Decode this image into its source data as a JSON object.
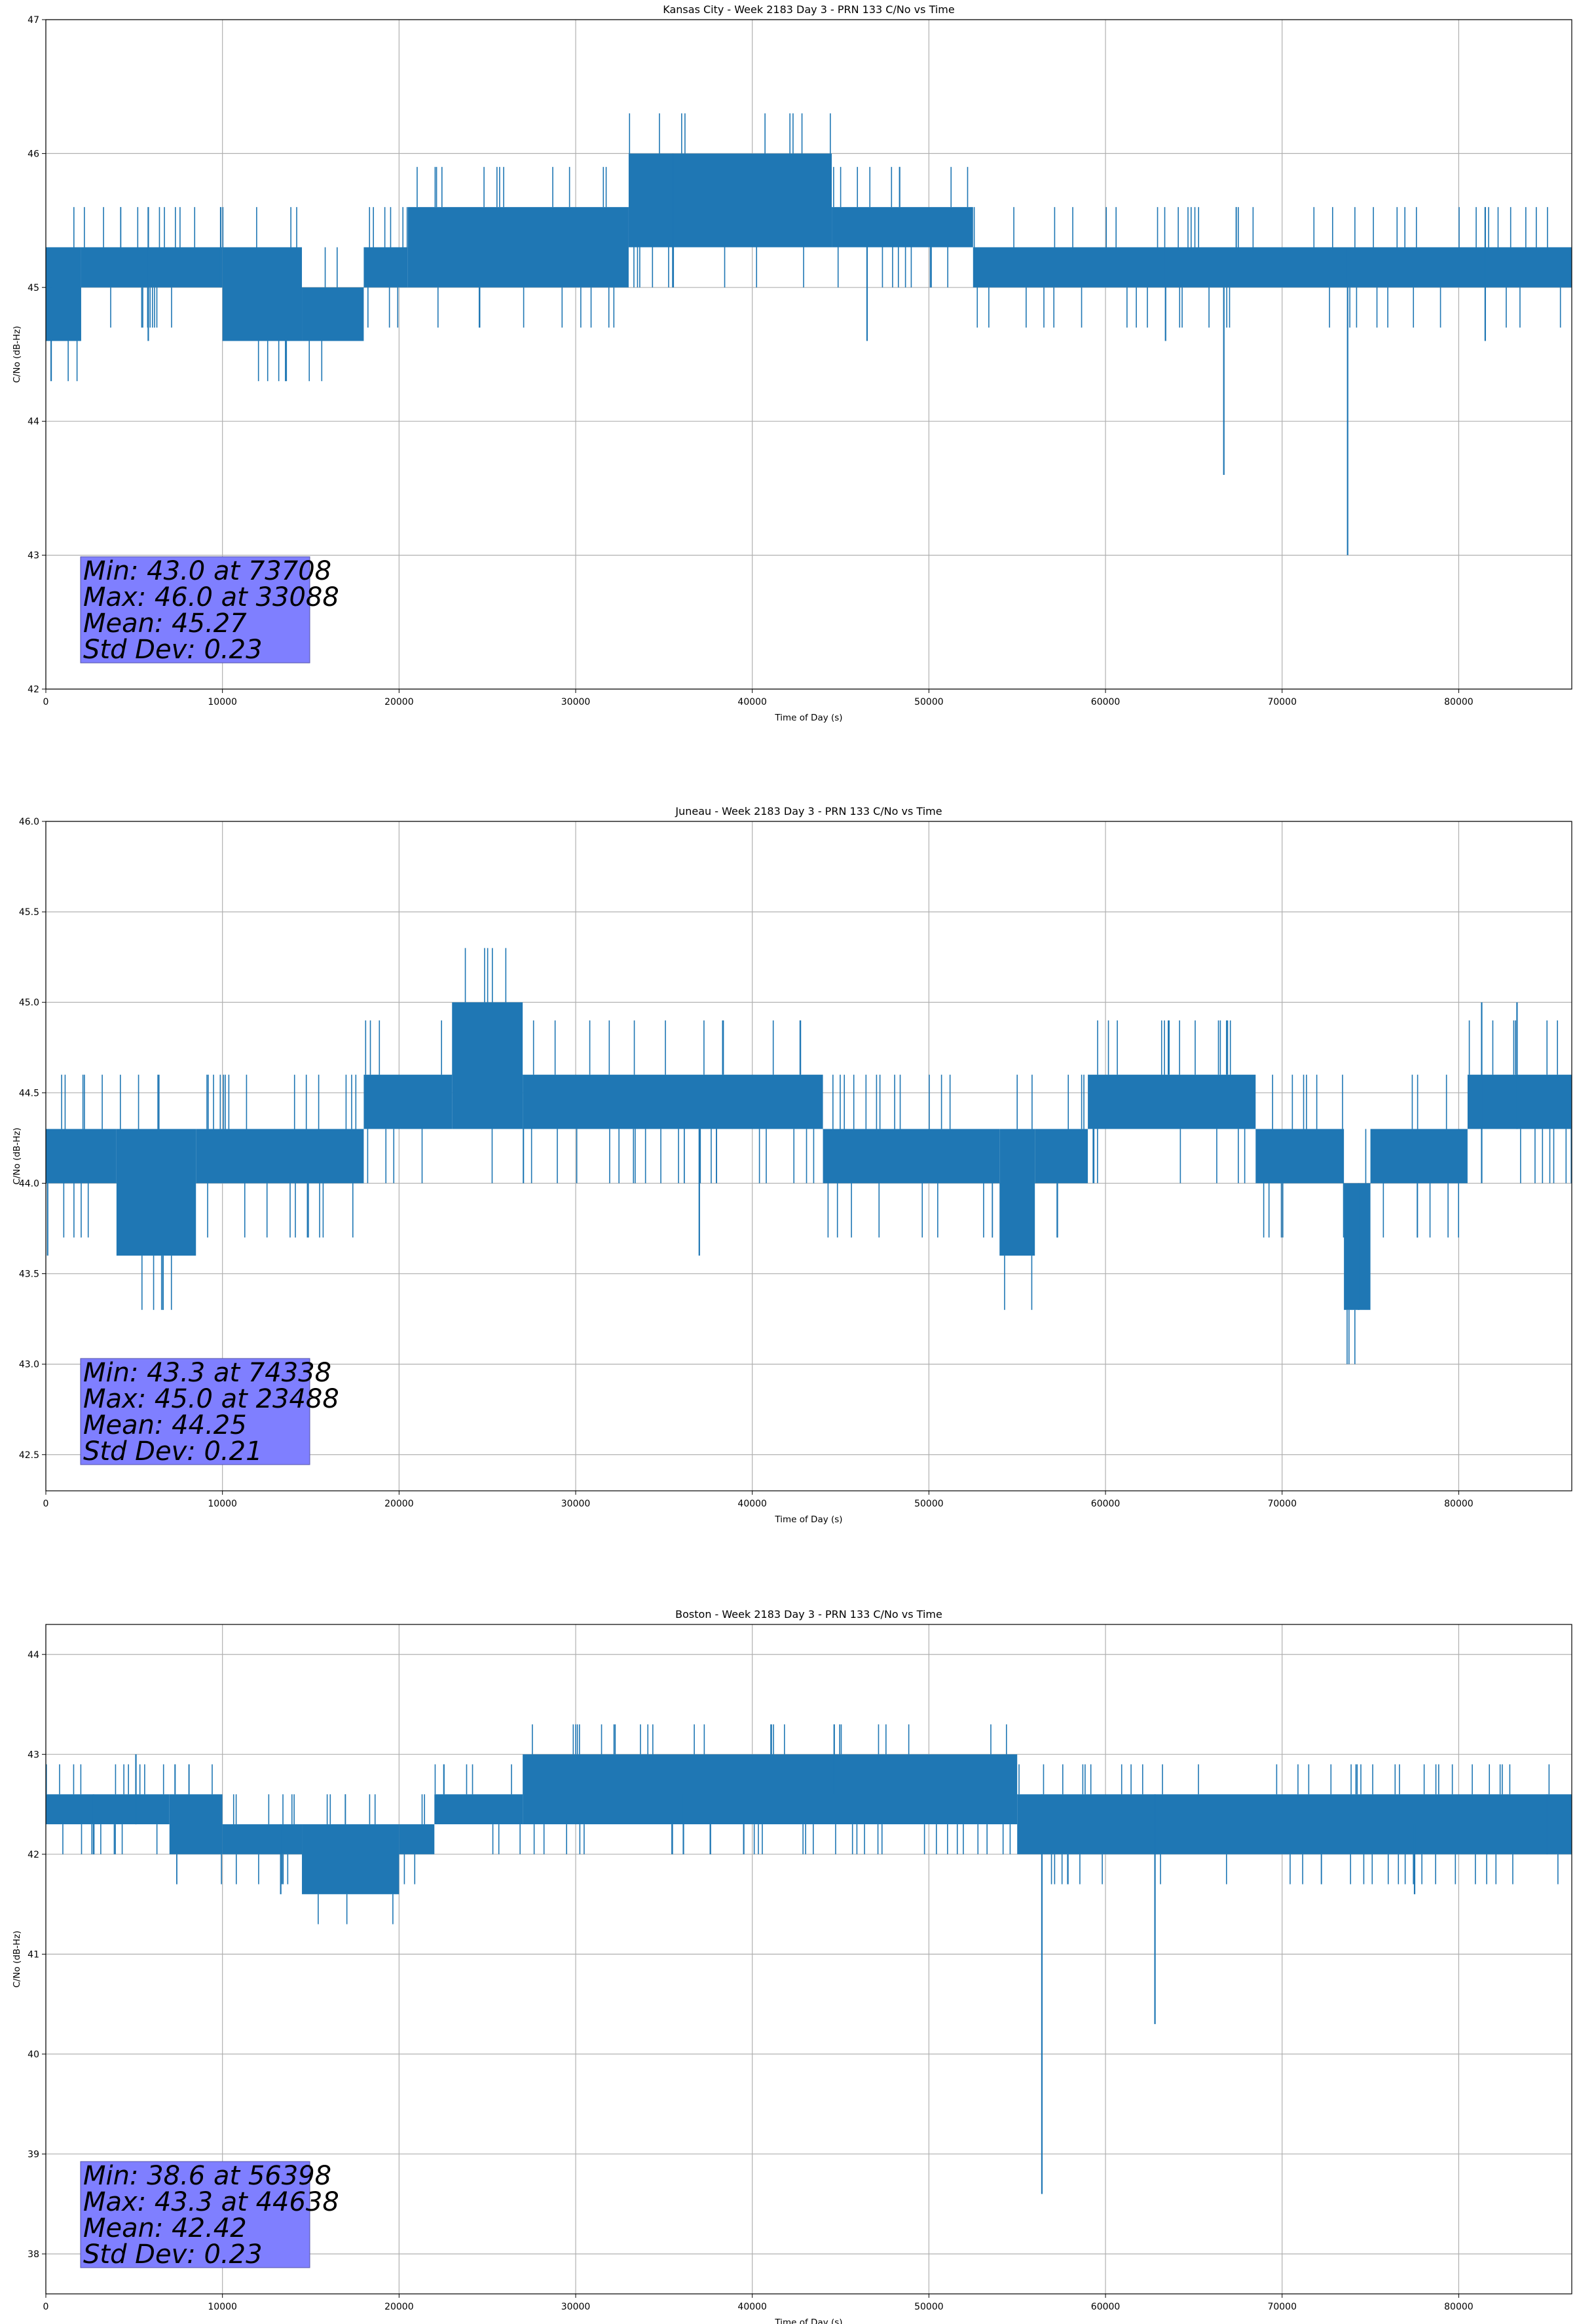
{
  "chart_data": [
    {
      "type": "line",
      "title": "Kansas City - Week 2183 Day 3 - PRN 133 C/No vs Time",
      "xlabel": "Time of Day (s)",
      "ylabel": "C/No (dB-Hz)",
      "xlim": [
        0,
        86400
      ],
      "ylim": [
        42,
        47
      ],
      "x_ticks": [
        0,
        10000,
        20000,
        30000,
        40000,
        50000,
        60000,
        70000,
        80000
      ],
      "y_ticks": [
        42,
        43,
        44,
        45,
        46,
        47
      ],
      "y_tick_labels": [
        "42",
        "43",
        "44",
        "45",
        "46",
        "47"
      ],
      "grid": true,
      "color": "#1f77b4",
      "segments": [
        {
          "x0": 0,
          "x1": 2000,
          "lo": 44.6,
          "hi": 45.3
        },
        {
          "x0": 2000,
          "x1": 10000,
          "lo": 45.0,
          "hi": 45.3
        },
        {
          "x0": 10000,
          "x1": 14500,
          "lo": 44.6,
          "hi": 45.3
        },
        {
          "x0": 14500,
          "x1": 18000,
          "lo": 44.6,
          "hi": 45.0
        },
        {
          "x0": 18000,
          "x1": 20500,
          "lo": 45.0,
          "hi": 45.3
        },
        {
          "x0": 20500,
          "x1": 33000,
          "lo": 45.0,
          "hi": 45.6
        },
        {
          "x0": 33000,
          "x1": 44500,
          "lo": 45.3,
          "hi": 46.0
        },
        {
          "x0": 44500,
          "x1": 52500,
          "lo": 45.3,
          "hi": 45.6
        },
        {
          "x0": 52500,
          "x1": 86400,
          "lo": 45.0,
          "hi": 45.3
        }
      ],
      "spikes": [
        {
          "x": 300,
          "lo": 44.3,
          "hi": 45.0
        },
        {
          "x": 5800,
          "lo": 44.6,
          "hi": 45.6
        },
        {
          "x": 9900,
          "lo": 45.0,
          "hi": 45.6
        },
        {
          "x": 35500,
          "lo": 45.0,
          "hi": 46.0
        },
        {
          "x": 46500,
          "lo": 44.6,
          "hi": 45.3
        },
        {
          "x": 63400,
          "lo": 44.6,
          "hi": 45.3
        },
        {
          "x": 66700,
          "lo": 43.6,
          "hi": 45.0
        },
        {
          "x": 73708,
          "lo": 43.0,
          "hi": 45.3
        },
        {
          "x": 81500,
          "lo": 44.6,
          "hi": 45.6
        }
      ],
      "stats": [
        "Min: 43.0 at 73708",
        "Max: 46.0 at 33088",
        "Mean: 45.27",
        "Std Dev: 0.23"
      ]
    },
    {
      "type": "line",
      "title": "Juneau - Week 2183 Day 3 - PRN 133 C/No vs Time",
      "xlabel": "Time of Day (s)",
      "ylabel": "C/No (dB-Hz)",
      "xlim": [
        0,
        86400
      ],
      "ylim": [
        42.3,
        46
      ],
      "x_ticks": [
        0,
        10000,
        20000,
        30000,
        40000,
        50000,
        60000,
        70000,
        80000
      ],
      "y_ticks": [
        42.5,
        43.0,
        43.5,
        44.0,
        44.5,
        45.0,
        45.5,
        46.0
      ],
      "y_tick_labels": [
        "42.5",
        "43.0",
        "43.5",
        "44.0",
        "44.5",
        "45.0",
        "45.5",
        "46.0"
      ],
      "grid": true,
      "color": "#1f77b4",
      "segments": [
        {
          "x0": 0,
          "x1": 4000,
          "lo": 44.0,
          "hi": 44.3
        },
        {
          "x0": 4000,
          "x1": 8500,
          "lo": 43.6,
          "hi": 44.3
        },
        {
          "x0": 8500,
          "x1": 18000,
          "lo": 44.0,
          "hi": 44.3
        },
        {
          "x0": 18000,
          "x1": 23000,
          "lo": 44.3,
          "hi": 44.6
        },
        {
          "x0": 23000,
          "x1": 27000,
          "lo": 44.3,
          "hi": 45.0
        },
        {
          "x0": 27000,
          "x1": 44000,
          "lo": 44.3,
          "hi": 44.6
        },
        {
          "x0": 44000,
          "x1": 54000,
          "lo": 44.0,
          "hi": 44.3
        },
        {
          "x0": 54000,
          "x1": 56000,
          "lo": 43.6,
          "hi": 44.3
        },
        {
          "x0": 56000,
          "x1": 59000,
          "lo": 44.0,
          "hi": 44.3
        },
        {
          "x0": 59000,
          "x1": 68500,
          "lo": 44.3,
          "hi": 44.6
        },
        {
          "x0": 68500,
          "x1": 73500,
          "lo": 44.0,
          "hi": 44.3
        },
        {
          "x0": 73500,
          "x1": 75000,
          "lo": 43.3,
          "hi": 44.0
        },
        {
          "x0": 75000,
          "x1": 80500,
          "lo": 44.0,
          "hi": 44.3
        },
        {
          "x0": 80500,
          "x1": 86400,
          "lo": 44.3,
          "hi": 44.6
        }
      ],
      "spikes": [
        {
          "x": 100,
          "lo": 43.6,
          "hi": 44.3
        },
        {
          "x": 37000,
          "lo": 43.6,
          "hi": 44.3
        },
        {
          "x": 74338,
          "lo": 43.3,
          "hi": 44.0
        },
        {
          "x": 81300,
          "lo": 44.0,
          "hi": 45.0
        },
        {
          "x": 83300,
          "lo": 44.3,
          "hi": 45.0
        }
      ],
      "stats": [
        "Min: 43.3 at 74338",
        "Max: 45.0 at 23488",
        "Mean: 44.25",
        "Std Dev: 0.21"
      ]
    },
    {
      "type": "line",
      "title": "Boston - Week 2183 Day 3 - PRN 133 C/No vs Time",
      "xlabel": "Time of Day (s)",
      "ylabel": "C/No (dB-Hz)",
      "xlim": [
        0,
        86400
      ],
      "ylim": [
        37.6,
        44.3
      ],
      "x_ticks": [
        0,
        10000,
        20000,
        30000,
        40000,
        50000,
        60000,
        70000,
        80000
      ],
      "y_ticks": [
        38,
        39,
        40,
        41,
        42,
        43,
        44
      ],
      "y_tick_labels": [
        "38",
        "39",
        "40",
        "41",
        "42",
        "43",
        "44"
      ],
      "grid": true,
      "color": "#1f77b4",
      "segments": [
        {
          "x0": 0,
          "x1": 7000,
          "lo": 42.3,
          "hi": 42.6
        },
        {
          "x0": 7000,
          "x1": 10000,
          "lo": 42.0,
          "hi": 42.6
        },
        {
          "x0": 10000,
          "x1": 14500,
          "lo": 42.0,
          "hi": 42.3
        },
        {
          "x0": 14500,
          "x1": 20000,
          "lo": 41.6,
          "hi": 42.3
        },
        {
          "x0": 20000,
          "x1": 22000,
          "lo": 42.0,
          "hi": 42.3
        },
        {
          "x0": 22000,
          "x1": 27000,
          "lo": 42.3,
          "hi": 42.6
        },
        {
          "x0": 27000,
          "x1": 55000,
          "lo": 42.3,
          "hi": 43.0
        },
        {
          "x0": 55000,
          "x1": 86400,
          "lo": 42.0,
          "hi": 42.6
        }
      ],
      "spikes": [
        {
          "x": 2700,
          "lo": 42.0,
          "hi": 42.6
        },
        {
          "x": 5100,
          "lo": 42.3,
          "hi": 43.0
        },
        {
          "x": 13300,
          "lo": 41.6,
          "hi": 42.3
        },
        {
          "x": 36100,
          "lo": 42.0,
          "hi": 42.6
        },
        {
          "x": 44638,
          "lo": 42.6,
          "hi": 43.3
        },
        {
          "x": 56398,
          "lo": 38.6,
          "hi": 42.6
        },
        {
          "x": 62800,
          "lo": 40.3,
          "hi": 42.6
        },
        {
          "x": 77500,
          "lo": 41.6,
          "hi": 42.3
        },
        {
          "x": 85000,
          "lo": 42.0,
          "hi": 42.6
        }
      ],
      "stats": [
        "Min: 38.6 at 56398",
        "Max: 43.3 at 44638",
        "Mean: 42.42",
        "Std Dev: 0.23"
      ]
    }
  ]
}
